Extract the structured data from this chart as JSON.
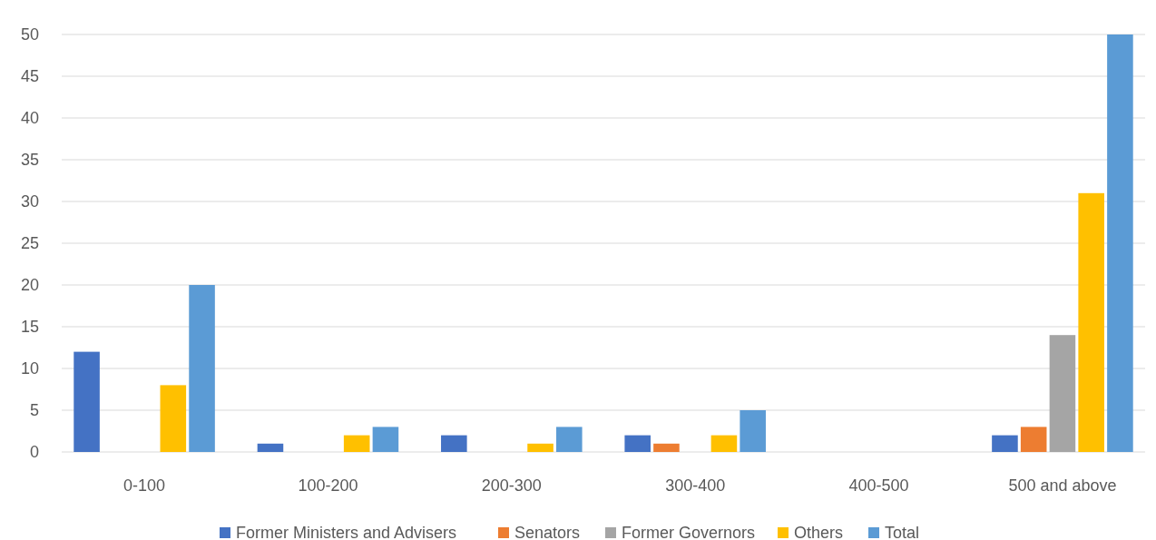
{
  "chart_data": {
    "type": "bar",
    "categories": [
      "0-100",
      "100-200",
      "200-300",
      "300-400",
      "400-500",
      "500 and above"
    ],
    "series": [
      {
        "name": "Former Ministers and Advisers",
        "color": "#4472c4",
        "values": [
          12,
          1,
          2,
          2,
          0,
          2
        ]
      },
      {
        "name": "Senators",
        "color": "#ed7d31",
        "values": [
          0,
          0,
          0,
          1,
          0,
          3
        ]
      },
      {
        "name": "Former Governors",
        "color": "#a5a5a5",
        "values": [
          0,
          0,
          0,
          0,
          0,
          14
        ]
      },
      {
        "name": "Others",
        "color": "#ffc000",
        "values": [
          8,
          2,
          1,
          2,
          0,
          31
        ]
      },
      {
        "name": "Total",
        "color": "#5b9bd5",
        "values": [
          20,
          3,
          3,
          5,
          0,
          50
        ]
      }
    ],
    "ylim": [
      0,
      50
    ],
    "yticks": [
      0,
      5,
      10,
      15,
      20,
      25,
      30,
      35,
      40,
      45,
      50
    ],
    "grid": "y",
    "legend": "bottom"
  }
}
